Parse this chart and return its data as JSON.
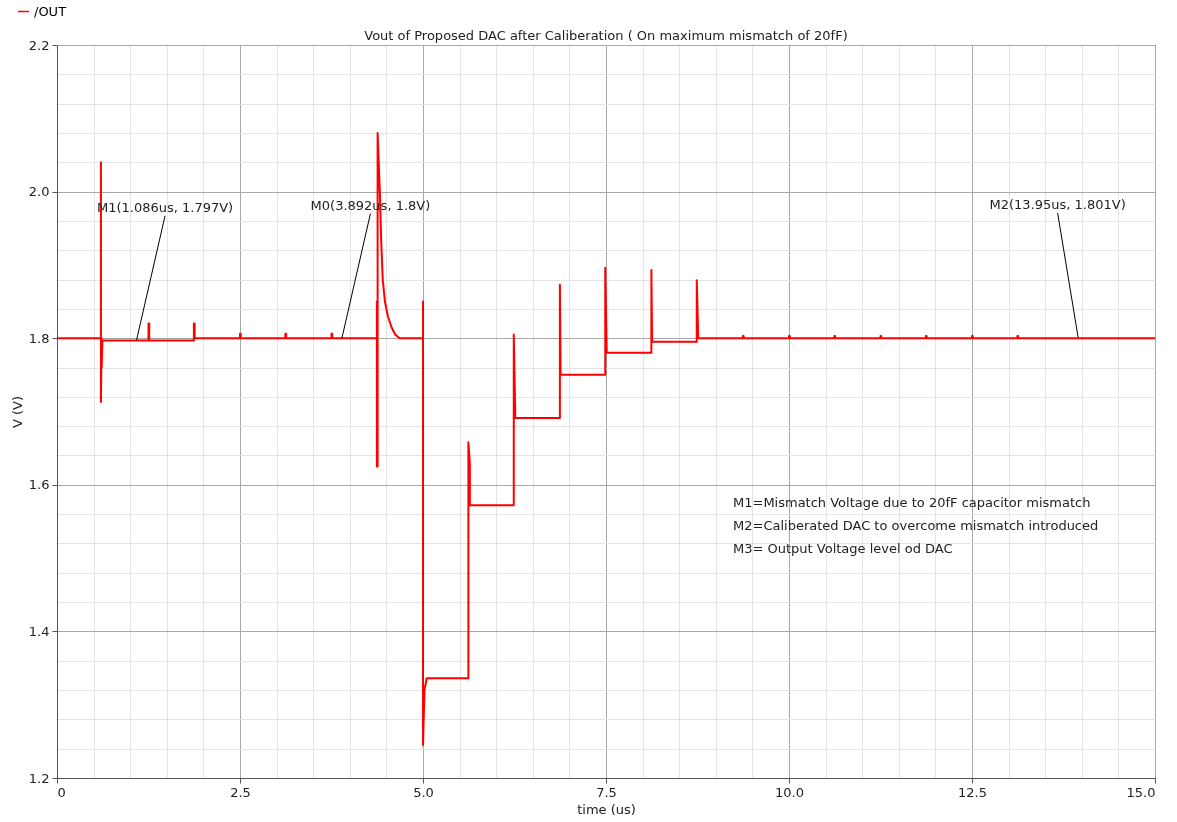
{
  "chart_data": {
    "type": "line",
    "title": "Vout of Proposed DAC after Caliberation ( On maximum mismatch of 20fF)",
    "xlabel": "time (us)",
    "ylabel": "V (V)",
    "series": [
      {
        "name": "/OUT",
        "color": "#ff0000",
        "x": [
          0,
          0.6,
          0.6,
          0.6,
          0.61,
          0.61,
          0.62,
          1.25,
          1.25,
          1.26,
          1.26,
          1.87,
          1.87,
          1.88,
          1.88,
          2.5,
          2.5,
          2.51,
          2.51,
          3.12,
          3.12,
          3.13,
          3.13,
          3.75,
          3.75,
          3.76,
          3.76,
          4.37,
          4.37,
          4.37,
          4.38,
          4.38,
          4.41,
          4.43,
          4.45,
          4.48,
          4.52,
          4.57,
          4.62,
          4.68,
          5.0,
          5.0,
          5.0,
          5.02,
          5.05,
          5.62,
          5.62,
          5.64,
          5.64,
          6.24,
          6.24,
          6.26,
          6.26,
          6.87,
          6.87,
          6.88,
          7.49,
          7.49,
          7.51,
          8.12,
          8.12,
          8.13,
          8.74,
          8.74,
          8.76,
          9.37,
          9.37,
          9.38,
          9.38,
          10.0,
          10.0,
          10.01,
          10.01,
          10.62,
          10.62,
          10.63,
          10.63,
          11.25,
          11.25,
          11.26,
          11.26,
          11.87,
          11.87,
          11.88,
          11.88,
          12.5,
          12.5,
          12.51,
          12.51,
          13.12,
          13.12,
          13.13,
          13.13,
          15
        ],
        "values": [
          1.8,
          1.8,
          2.04,
          1.713,
          1.8,
          1.76,
          1.797,
          1.797,
          1.82,
          1.82,
          1.797,
          1.797,
          1.82,
          1.82,
          1.8,
          1.8,
          1.806,
          1.806,
          1.8,
          1.8,
          1.806,
          1.806,
          1.8,
          1.8,
          1.806,
          1.806,
          1.8,
          1.8,
          1.85,
          1.625,
          1.625,
          2.08,
          2.0,
          1.93,
          1.88,
          1.85,
          1.83,
          1.815,
          1.805,
          1.8,
          1.8,
          1.85,
          1.245,
          1.32,
          1.336,
          1.336,
          1.658,
          1.63,
          1.572,
          1.572,
          1.805,
          1.7,
          1.691,
          1.691,
          1.873,
          1.75,
          1.75,
          1.896,
          1.78,
          1.78,
          1.893,
          1.795,
          1.795,
          1.879,
          1.8,
          1.8,
          1.803,
          1.803,
          1.8,
          1.8,
          1.803,
          1.803,
          1.8,
          1.8,
          1.803,
          1.803,
          1.8,
          1.8,
          1.803,
          1.803,
          1.8,
          1.8,
          1.803,
          1.803,
          1.8,
          1.8,
          1.803,
          1.803,
          1.8,
          1.8,
          1.803,
          1.803,
          1.8,
          1.8
        ]
      }
    ],
    "xlim": [
      0,
      15
    ],
    "xticks": [
      0,
      {
        "value": 0.5,
        "label": null
      },
      {
        "value": 1,
        "label": null
      },
      {
        "value": 1.5,
        "label": null
      },
      {
        "value": 2,
        "label": null
      },
      2.5,
      {
        "value": 3,
        "label": null
      },
      {
        "value": 3.5,
        "label": null
      },
      {
        "value": 4,
        "label": null
      },
      {
        "value": 4.5,
        "label": null
      },
      {
        "value": 5,
        "label": "5.0"
      },
      {
        "value": 5.5,
        "label": null
      },
      {
        "value": 6,
        "label": null
      },
      {
        "value": 6.5,
        "label": null
      },
      {
        "value": 7,
        "label": null
      },
      7.5,
      {
        "value": 8,
        "label": null
      },
      {
        "value": 8.5,
        "label": null
      },
      {
        "value": 9,
        "label": null
      },
      {
        "value": 9.5,
        "label": null
      },
      {
        "value": 10,
        "label": "10.0"
      },
      {
        "value": 10.5,
        "label": null
      },
      {
        "value": 11,
        "label": null
      },
      {
        "value": 11.5,
        "label": null
      },
      {
        "value": 12,
        "label": null
      },
      12.5,
      {
        "value": 13,
        "label": null
      },
      {
        "value": 13.5,
        "label": null
      },
      {
        "value": 14,
        "label": null
      },
      {
        "value": 14.5,
        "label": null
      },
      {
        "value": 15,
        "label": "15.0"
      }
    ],
    "ylim": [
      1.2,
      2.2
    ],
    "yticks": [
      1.2,
      {
        "value": 1.24,
        "label": null
      },
      {
        "value": 1.28,
        "label": null
      },
      {
        "value": 1.32,
        "label": null
      },
      {
        "value": 1.36,
        "label": null
      },
      1.4,
      {
        "value": 1.44,
        "label": null
      },
      {
        "value": 1.48,
        "label": null
      },
      {
        "value": 1.52,
        "label": null
      },
      {
        "value": 1.56,
        "label": null
      },
      1.6,
      {
        "value": 1.64,
        "label": null
      },
      {
        "value": 1.68,
        "label": null
      },
      {
        "value": 1.72,
        "label": null
      },
      {
        "value": 1.76,
        "label": null
      },
      1.8,
      {
        "value": 1.84,
        "label": null
      },
      {
        "value": 1.88,
        "label": null
      },
      {
        "value": 1.92,
        "label": null
      },
      {
        "value": 1.96,
        "label": null
      },
      {
        "value": 2,
        "label": "2.0"
      },
      {
        "value": 2.04,
        "label": null
      },
      {
        "value": 2.08,
        "label": null
      },
      {
        "value": 2.12,
        "label": null
      },
      {
        "value": 2.16,
        "label": null
      },
      2.2
    ],
    "grid": true,
    "legend": "top left",
    "marker": "none",
    "line_style": "solid",
    "annotations": [
      {
        "text": "M1(1.086us, 1.797V)",
        "x": 1.086,
        "y": 1.797
      },
      {
        "text": "M0(3.892us, 1.8V)",
        "x": 3.892,
        "y": 1.8
      },
      {
        "text": "M2(13.95us, 1.801V)",
        "x": 13.95,
        "y": 1.801
      },
      "M1=Mismatch Voltage due to 20fF capacitor mismatch",
      "M2=Caliberated DAC to overcome mismatch introduced",
      "M3= Output Voltage level od DAC"
    ]
  }
}
